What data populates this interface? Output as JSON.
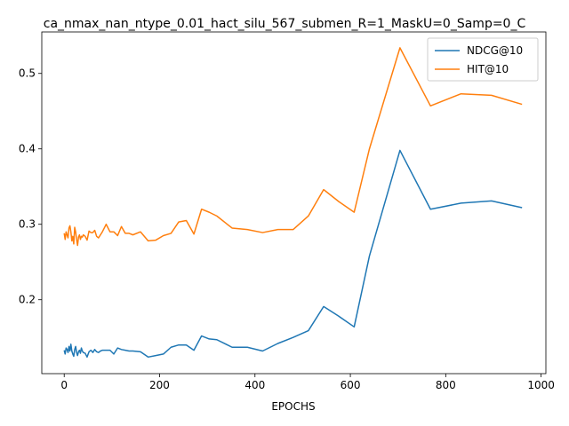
{
  "chart_data": {
    "type": "line",
    "title": "ca_nmax_nan_ntype_0.01_hact_silu_567_submen_R=1_MaskU=0_Samp=0_C",
    "xlabel": "EPOCHS",
    "ylabel": "",
    "xlim": [
      -47,
      1010
    ],
    "ylim": [
      0.102,
      0.555
    ],
    "xticks": [
      0,
      200,
      400,
      600,
      800,
      1000
    ],
    "yticks": [
      0.2,
      0.3,
      0.4,
      0.5
    ],
    "grid": false,
    "legend_position": "top-right",
    "series": [
      {
        "name": "NDCG@10",
        "color": "#1f77b4",
        "x": [
          0,
          2,
          4,
          6,
          8,
          10,
          12,
          14,
          16,
          18,
          20,
          22,
          24,
          26,
          28,
          30,
          32,
          34,
          36,
          38,
          40,
          44,
          48,
          52,
          56,
          60,
          64,
          68,
          72,
          76,
          80,
          88,
          96,
          104,
          112,
          120,
          128,
          136,
          144,
          160,
          176,
          192,
          208,
          224,
          240,
          256,
          272,
          288,
          304,
          320,
          352,
          384,
          416,
          448,
          480,
          512,
          544,
          576,
          608,
          640,
          704,
          768,
          832,
          896,
          960
        ],
        "y": [
          0.133,
          0.128,
          0.136,
          0.134,
          0.13,
          0.138,
          0.132,
          0.141,
          0.132,
          0.128,
          0.125,
          0.134,
          0.138,
          0.13,
          0.126,
          0.131,
          0.133,
          0.129,
          0.136,
          0.132,
          0.13,
          0.129,
          0.124,
          0.131,
          0.133,
          0.13,
          0.134,
          0.131,
          0.13,
          0.132,
          0.133,
          0.133,
          0.133,
          0.128,
          0.136,
          0.134,
          0.133,
          0.132,
          0.132,
          0.131,
          0.124,
          0.126,
          0.128,
          0.137,
          0.14,
          0.14,
          0.133,
          0.152,
          0.148,
          0.147,
          0.137,
          0.137,
          0.132,
          0.142,
          0.15,
          0.159,
          0.191,
          0.178,
          0.164,
          0.258,
          0.398,
          0.32,
          0.328,
          0.331,
          0.322
        ]
      },
      {
        "name": "HIT@10",
        "color": "#ff7f0e",
        "x": [
          0,
          2,
          4,
          6,
          8,
          10,
          12,
          14,
          16,
          18,
          20,
          22,
          24,
          26,
          28,
          30,
          32,
          34,
          36,
          38,
          40,
          44,
          48,
          52,
          56,
          60,
          64,
          68,
          72,
          76,
          80,
          88,
          96,
          104,
          112,
          120,
          128,
          136,
          144,
          160,
          176,
          192,
          208,
          224,
          240,
          256,
          272,
          288,
          304,
          320,
          352,
          384,
          416,
          448,
          480,
          512,
          544,
          576,
          608,
          640,
          704,
          768,
          832,
          896,
          960
        ],
        "y": [
          0.288,
          0.28,
          0.29,
          0.286,
          0.282,
          0.295,
          0.298,
          0.29,
          0.278,
          0.284,
          0.274,
          0.296,
          0.29,
          0.28,
          0.272,
          0.283,
          0.286,
          0.28,
          0.284,
          0.283,
          0.286,
          0.284,
          0.279,
          0.291,
          0.289,
          0.289,
          0.292,
          0.284,
          0.282,
          0.286,
          0.29,
          0.3,
          0.29,
          0.29,
          0.285,
          0.297,
          0.288,
          0.288,
          0.286,
          0.29,
          0.278,
          0.279,
          0.285,
          0.288,
          0.303,
          0.305,
          0.287,
          0.32,
          0.316,
          0.311,
          0.295,
          0.293,
          0.289,
          0.293,
          0.293,
          0.311,
          0.346,
          0.33,
          0.316,
          0.4,
          0.534,
          0.457,
          0.473,
          0.471,
          0.459
        ]
      }
    ]
  }
}
